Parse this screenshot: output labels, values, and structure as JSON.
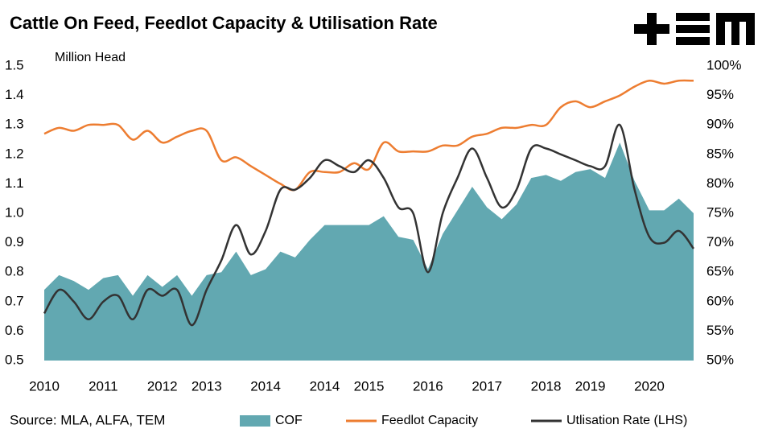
{
  "chart_data": {
    "type": "combo",
    "title": "Cattle On Feed, Feedlot Capacity & Utilisation Rate",
    "y_label": "Million Head",
    "source": "Source: MLA, ALFA, TEM",
    "categories": [
      "2010",
      null,
      null,
      null,
      "2011",
      null,
      null,
      null,
      "2012",
      null,
      null,
      "2013",
      null,
      null,
      null,
      "2014",
      null,
      null,
      null,
      "2014",
      null,
      null,
      "2015",
      null,
      null,
      null,
      "2016",
      null,
      null,
      null,
      "2017",
      null,
      null,
      null,
      "2018",
      null,
      null,
      "2019",
      null,
      null,
      null,
      "2020",
      null,
      null,
      null
    ],
    "ylim": [
      0.5,
      1.5
    ],
    "yticks": [
      0.5,
      0.6,
      0.7,
      0.8,
      0.9,
      {
        "value": 1,
        "label": "1.0"
      },
      1.1,
      1.2,
      1.3,
      1.4,
      1.5
    ],
    "y2lim": [
      50,
      100
    ],
    "y2ticks": [
      {
        "value": 50,
        "label": "50%"
      },
      {
        "value": 55,
        "label": "55%"
      },
      {
        "value": 60,
        "label": "60%"
      },
      {
        "value": 65,
        "label": "65%"
      },
      {
        "value": 70,
        "label": "70%"
      },
      {
        "value": 75,
        "label": "75%"
      },
      {
        "value": 80,
        "label": "80%"
      },
      {
        "value": 85,
        "label": "85%"
      },
      {
        "value": 90,
        "label": "90%"
      },
      {
        "value": 95,
        "label": "95%"
      },
      {
        "value": 100,
        "label": "100%"
      }
    ],
    "series": [
      {
        "name": "COF",
        "type": "area",
        "color": "#62a8b1",
        "values": [
          0.74,
          0.79,
          0.77,
          0.74,
          0.78,
          0.79,
          0.72,
          0.79,
          0.75,
          0.79,
          0.72,
          0.79,
          0.8,
          0.87,
          0.79,
          0.81,
          0.87,
          0.85,
          0.91,
          0.96,
          0.96,
          0.96,
          0.96,
          0.99,
          0.92,
          0.91,
          0.81,
          0.93,
          1.01,
          1.09,
          1.02,
          0.98,
          1.03,
          1.12,
          1.13,
          1.11,
          1.14,
          1.15,
          1.12,
          1.24,
          1.11,
          1.01,
          1.01,
          1.05,
          1.0
        ]
      },
      {
        "name": "Feedlot Capacity",
        "type": "line",
        "color": "#ed7d31",
        "values": [
          1.27,
          1.29,
          1.28,
          1.3,
          1.3,
          1.3,
          1.25,
          1.28,
          1.24,
          1.26,
          1.28,
          1.28,
          1.18,
          1.19,
          1.16,
          1.13,
          1.1,
          1.08,
          1.14,
          1.14,
          1.14,
          1.17,
          1.15,
          1.24,
          1.21,
          1.21,
          1.21,
          1.23,
          1.23,
          1.26,
          1.27,
          1.29,
          1.29,
          1.3,
          1.3,
          1.36,
          1.38,
          1.36,
          1.38,
          1.4,
          1.43,
          1.45,
          1.44,
          1.45,
          1.45
        ]
      },
      {
        "name": "Utlisation Rate (LHS)",
        "type": "line",
        "axis": "y2",
        "color": "#333333",
        "values": [
          58,
          62,
          60,
          57,
          60,
          61,
          57,
          62,
          61,
          62,
          56,
          62,
          67,
          73,
          68,
          72,
          79,
          79,
          81,
          84,
          83,
          82,
          84,
          81,
          76,
          75,
          65,
          75,
          81,
          86,
          81,
          76,
          79,
          86,
          86,
          85,
          84,
          83,
          83,
          90,
          79,
          71,
          70,
          72,
          69
        ]
      }
    ]
  }
}
